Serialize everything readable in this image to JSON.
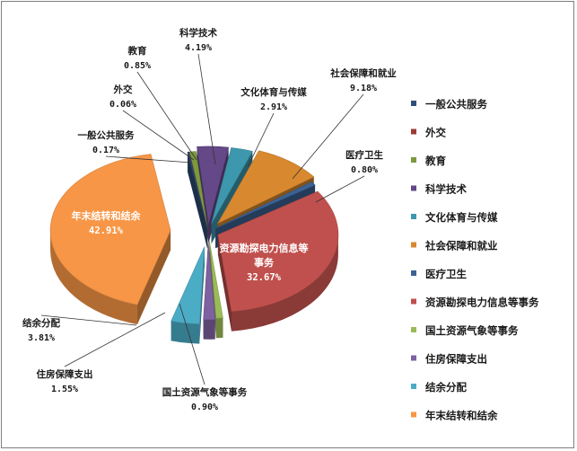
{
  "chart_data": {
    "type": "pie",
    "style": "3d-exploded",
    "legend_position": "right",
    "unit": "%",
    "slices": [
      {
        "name": "一般公共服务",
        "value": 0.17,
        "label": "0.17%",
        "color": "#2f4f7a"
      },
      {
        "name": "外交",
        "value": 0.06,
        "label": "0.06%",
        "color": "#9c3b36"
      },
      {
        "name": "教育",
        "value": 0.85,
        "label": "0.85%",
        "color": "#7b9a3c"
      },
      {
        "name": "科学技术",
        "value": 4.19,
        "label": "4.19%",
        "color": "#654888"
      },
      {
        "name": "文化体育与传媒",
        "value": 2.91,
        "label": "2.91%",
        "color": "#3d97ad"
      },
      {
        "name": "社会保障和就业",
        "value": 9.18,
        "label": "9.18%",
        "color": "#d8892f"
      },
      {
        "name": "医疗卫生",
        "value": 0.8,
        "label": "0.80%",
        "color": "#3c6294"
      },
      {
        "name": "资源勘探电力信息等事务",
        "value": 32.67,
        "label": "32.67%",
        "color": "#c0504d"
      },
      {
        "name": "国土资源气象等事务",
        "value": 0.9,
        "label": "0.90%",
        "color": "#9bbb59"
      },
      {
        "name": "住房保障支出",
        "value": 1.55,
        "label": "1.55%",
        "color": "#7e61a0"
      },
      {
        "name": "结余分配",
        "value": 3.81,
        "label": "3.81%",
        "color": "#4bacc6"
      },
      {
        "name": "年末结转和结余",
        "value": 42.91,
        "label": "42.91%",
        "color": "#f79646"
      }
    ]
  }
}
